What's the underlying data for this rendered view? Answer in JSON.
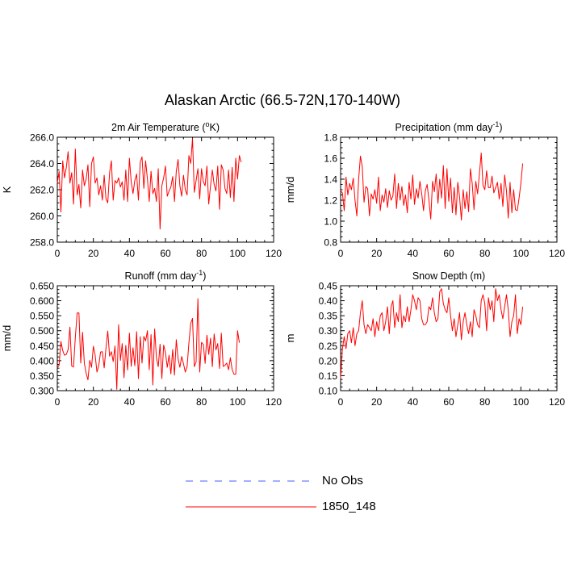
{
  "figure": {
    "title": "Alaskan Arctic (66.5-72N,170-140W)"
  },
  "legend": [
    {
      "label": "No Obs",
      "color": "#4a5cff",
      "style": "dashed"
    },
    {
      "label": "1850_148",
      "color": "#ff0000",
      "style": "solid"
    }
  ],
  "chart_data": [
    {
      "type": "line",
      "title": "2m Air Temperature (°K)",
      "title_parts": {
        "base": "2m Air Temperature (",
        "sup": "o",
        "tail": "K)"
      },
      "xlabel": "",
      "ylabel": "K",
      "xlim": [
        0,
        120
      ],
      "ylim": [
        258,
        266
      ],
      "xticks": [
        0,
        20,
        40,
        60,
        80,
        100,
        120
      ],
      "yticks": [
        258,
        260,
        262,
        264,
        266
      ],
      "ytick_labels": [
        "258.0",
        "260.0",
        "262.0",
        "264.0",
        "266.0"
      ],
      "series": [
        {
          "name": "1850_148",
          "color": "#ff0000",
          "x0": 0,
          "dx": 1,
          "values": [
            262.5,
            263.4,
            260.3,
            264.2,
            262.9,
            263.7,
            264.9,
            262.5,
            263.3,
            260.9,
            265.1,
            261.6,
            262.4,
            260.6,
            263.5,
            262.3,
            262.8,
            263.9,
            260.7,
            264.0,
            264.5,
            262.5,
            262.9,
            261.6,
            262.3,
            261.2,
            263.1,
            261.3,
            261.0,
            263.3,
            264.2,
            261.2,
            262.7,
            262.5,
            262.9,
            262.2,
            262.6,
            261.2,
            263.5,
            261.1,
            264.4,
            262.6,
            261.7,
            262.7,
            263.2,
            261.2,
            264.1,
            264.5,
            262.1,
            264.2,
            262.8,
            261.1,
            263.4,
            261.7,
            262.1,
            261.1,
            263.6,
            259.0,
            262.3,
            262.9,
            263.8,
            261.5,
            261.9,
            262.2,
            263.0,
            261.1,
            263.4,
            264.3,
            262.3,
            261.5,
            263.1,
            262.0,
            261.6,
            264.6,
            264.0,
            265.9,
            261.8,
            262.7,
            263.6,
            261.3,
            263.6,
            262.6,
            262.3,
            263.8,
            260.9,
            262.3,
            263.5,
            262.4,
            261.9,
            263.8,
            260.5,
            263.9,
            263.5,
            262.1,
            261.7,
            263.5,
            261.4,
            263.7,
            261.1,
            264.4,
            262.8,
            264.6,
            264.1
          ]
        }
      ]
    },
    {
      "type": "line",
      "title": "Precipitation (mm day-1)",
      "title_parts": {
        "base": "Precipitation (mm day",
        "sup": "-1",
        "tail": ")"
      },
      "xlabel": "",
      "ylabel": "mm/d",
      "xlim": [
        0,
        120
      ],
      "ylim": [
        0.8,
        1.8
      ],
      "xticks": [
        0,
        20,
        40,
        60,
        80,
        100,
        120
      ],
      "yticks": [
        0.8,
        1.0,
        1.2,
        1.4,
        1.6,
        1.8
      ],
      "ytick_labels": [
        "0.8",
        "1.0",
        "1.2",
        "1.4",
        "1.6",
        "1.8"
      ],
      "series": [
        {
          "name": "1850_148",
          "color": "#ff0000",
          "x0": 0,
          "dx": 1,
          "values": [
            1.29,
            1.27,
            1.1,
            1.42,
            1.25,
            1.36,
            1.3,
            1.41,
            1.2,
            1.05,
            1.4,
            1.62,
            1.52,
            1.18,
            1.33,
            1.31,
            1.05,
            1.26,
            1.21,
            1.3,
            1.17,
            1.42,
            1.1,
            1.25,
            1.18,
            1.31,
            1.13,
            1.29,
            1.2,
            1.24,
            1.45,
            1.12,
            1.36,
            1.2,
            1.33,
            1.15,
            1.25,
            1.08,
            1.37,
            1.21,
            1.44,
            1.16,
            1.31,
            1.22,
            1.38,
            1.26,
            1.1,
            1.29,
            1.35,
            1.2,
            1.02,
            1.38,
            1.28,
            1.45,
            1.17,
            1.4,
            1.22,
            1.53,
            1.12,
            1.5,
            1.19,
            1.41,
            1.08,
            1.32,
            1.06,
            1.37,
            1.23,
            1.01,
            1.3,
            1.12,
            1.28,
            1.09,
            1.5,
            1.36,
            1.11,
            1.38,
            1.26,
            1.45,
            1.65,
            1.34,
            1.3,
            1.48,
            1.32,
            1.32,
            1.43,
            1.27,
            1.32,
            1.37,
            1.21,
            1.36,
            1.14,
            1.44,
            1.29,
            1.03,
            1.37,
            1.08,
            1.3,
            1.11,
            1.1,
            1.22,
            1.36,
            1.55
          ]
        }
      ]
    },
    {
      "type": "line",
      "title": "Runoff (mm day-1)",
      "title_parts": {
        "base": "Runoff (mm day",
        "sup": "-1",
        "tail": ")"
      },
      "xlabel": "",
      "ylabel": "mm/d",
      "xlim": [
        0,
        120
      ],
      "ylim": [
        0.3,
        0.65
      ],
      "xticks": [
        0,
        20,
        40,
        60,
        80,
        100,
        120
      ],
      "yticks": [
        0.3,
        0.35,
        0.4,
        0.45,
        0.5,
        0.55,
        0.6,
        0.65
      ],
      "ytick_labels": [
        "0.300",
        "0.350",
        "0.400",
        "0.450",
        "0.500",
        "0.550",
        "0.600",
        "0.650"
      ],
      "series": [
        {
          "name": "1850_148",
          "color": "#ff0000",
          "x0": 0,
          "dx": 1,
          "values": [
            0.377,
            0.385,
            0.464,
            0.434,
            0.418,
            0.421,
            0.437,
            0.512,
            0.382,
            0.379,
            0.478,
            0.559,
            0.559,
            0.392,
            0.495,
            0.391,
            0.358,
            0.336,
            0.401,
            0.378,
            0.448,
            0.418,
            0.362,
            0.384,
            0.429,
            0.43,
            0.376,
            0.442,
            0.499,
            0.415,
            0.43,
            0.397,
            0.449,
            0.304,
            0.52,
            0.401,
            0.457,
            0.343,
            0.451,
            0.369,
            0.492,
            0.381,
            0.443,
            0.383,
            0.497,
            0.34,
            0.48,
            0.392,
            0.481,
            0.466,
            0.5,
            0.37,
            0.487,
            0.319,
            0.506,
            0.409,
            0.38,
            0.455,
            0.34,
            0.452,
            0.427,
            0.378,
            0.418,
            0.356,
            0.437,
            0.352,
            0.47,
            0.406,
            0.378,
            0.414,
            0.39,
            0.362,
            0.38,
            0.459,
            0.524,
            0.541,
            0.38,
            0.396,
            0.607,
            0.362,
            0.461,
            0.454,
            0.391,
            0.485,
            0.421,
            0.475,
            0.38,
            0.489,
            0.436,
            0.457,
            0.374,
            0.492,
            0.381,
            0.384,
            0.392,
            0.37,
            0.41,
            0.37,
            0.355,
            0.355,
            0.5,
            0.46
          ]
        }
      ]
    },
    {
      "type": "line",
      "title": "Snow Depth (m)",
      "title_parts": {
        "base": "Snow Depth (m)",
        "sup": "",
        "tail": ""
      },
      "xlabel": "",
      "ylabel": "m",
      "xlim": [
        0,
        120
      ],
      "ylim": [
        0.1,
        0.45
      ],
      "xticks": [
        0,
        20,
        40,
        60,
        80,
        100,
        120
      ],
      "yticks": [
        0.1,
        0.15,
        0.2,
        0.25,
        0.3,
        0.35,
        0.4,
        0.45
      ],
      "ytick_labels": [
        "0.10",
        "0.15",
        "0.20",
        "0.25",
        "0.30",
        "0.35",
        "0.40",
        "0.45"
      ],
      "series": [
        {
          "name": "1850_148",
          "color": "#ff0000",
          "x0": 0,
          "dx": 1,
          "values": [
            0.14,
            0.24,
            0.28,
            0.24,
            0.29,
            0.3,
            0.26,
            0.31,
            0.25,
            0.29,
            0.3,
            0.36,
            0.4,
            0.32,
            0.29,
            0.32,
            0.31,
            0.3,
            0.34,
            0.28,
            0.33,
            0.3,
            0.35,
            0.36,
            0.3,
            0.33,
            0.38,
            0.29,
            0.38,
            0.4,
            0.31,
            0.36,
            0.33,
            0.42,
            0.31,
            0.35,
            0.33,
            0.38,
            0.33,
            0.37,
            0.42,
            0.4,
            0.37,
            0.41,
            0.4,
            0.34,
            0.32,
            0.32,
            0.33,
            0.38,
            0.37,
            0.41,
            0.36,
            0.33,
            0.34,
            0.43,
            0.44,
            0.39,
            0.37,
            0.36,
            0.41,
            0.35,
            0.3,
            0.34,
            0.28,
            0.32,
            0.36,
            0.27,
            0.33,
            0.36,
            0.32,
            0.29,
            0.33,
            0.28,
            0.37,
            0.35,
            0.32,
            0.31,
            0.4,
            0.42,
            0.39,
            0.3,
            0.41,
            0.37,
            0.4,
            0.33,
            0.44,
            0.4,
            0.42,
            0.37,
            0.34,
            0.38,
            0.42,
            0.37,
            0.28,
            0.33,
            0.35,
            0.42,
            0.29,
            0.34,
            0.32,
            0.38
          ]
        }
      ]
    }
  ]
}
